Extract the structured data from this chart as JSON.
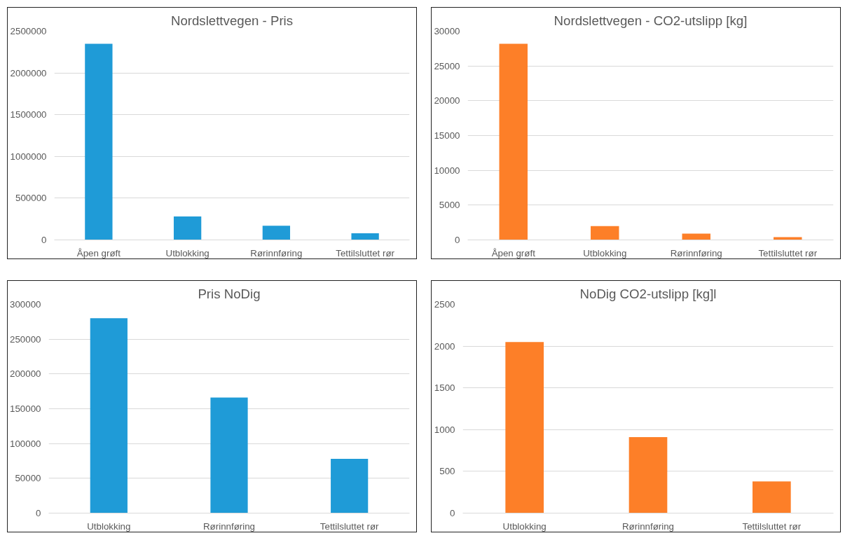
{
  "chart_data": [
    {
      "type": "bar",
      "title": "Nordslettvegen - Pris",
      "categories": [
        "Åpen grøft",
        "Utblokking",
        "Rørinnføring",
        "Tettilsluttet rør"
      ],
      "values": [
        2350000,
        280000,
        170000,
        80000
      ],
      "color": "#1f9bd7",
      "ylim": [
        0,
        2500000
      ],
      "yticks": [
        0,
        500000,
        1000000,
        1500000,
        2000000,
        2500000
      ],
      "grid": "y"
    },
    {
      "type": "bar",
      "title": "Nordslettvegen - CO2-utslipp [kg]",
      "categories": [
        "Åpen grøft",
        "Utblokking",
        "Rørinnføring",
        "Tettilsluttet rør"
      ],
      "values": [
        28200,
        2000,
        900,
        400
      ],
      "color": "#fd7f28",
      "ylim": [
        0,
        30000
      ],
      "yticks": [
        0,
        5000,
        10000,
        15000,
        20000,
        25000,
        30000
      ],
      "grid": "y"
    },
    {
      "type": "bar",
      "title": "Pris NoDig",
      "categories": [
        "Utblokking",
        "Rørinnføring",
        "Tettilsluttet rør"
      ],
      "values": [
        280000,
        166000,
        78000
      ],
      "color": "#1f9bd7",
      "ylim": [
        0,
        300000
      ],
      "yticks": [
        0,
        50000,
        100000,
        150000,
        200000,
        250000,
        300000
      ],
      "grid": "y"
    },
    {
      "type": "bar",
      "title": "NoDig CO2-utslipp [kg]l",
      "categories": [
        "Utblokking",
        "Rørinnføring",
        "Tettilsluttet rør"
      ],
      "values": [
        2050,
        910,
        380
      ],
      "color": "#fd7f28",
      "ylim": [
        0,
        2500
      ],
      "yticks": [
        0,
        500,
        1000,
        1500,
        2000,
        2500
      ],
      "grid": "y"
    }
  ]
}
